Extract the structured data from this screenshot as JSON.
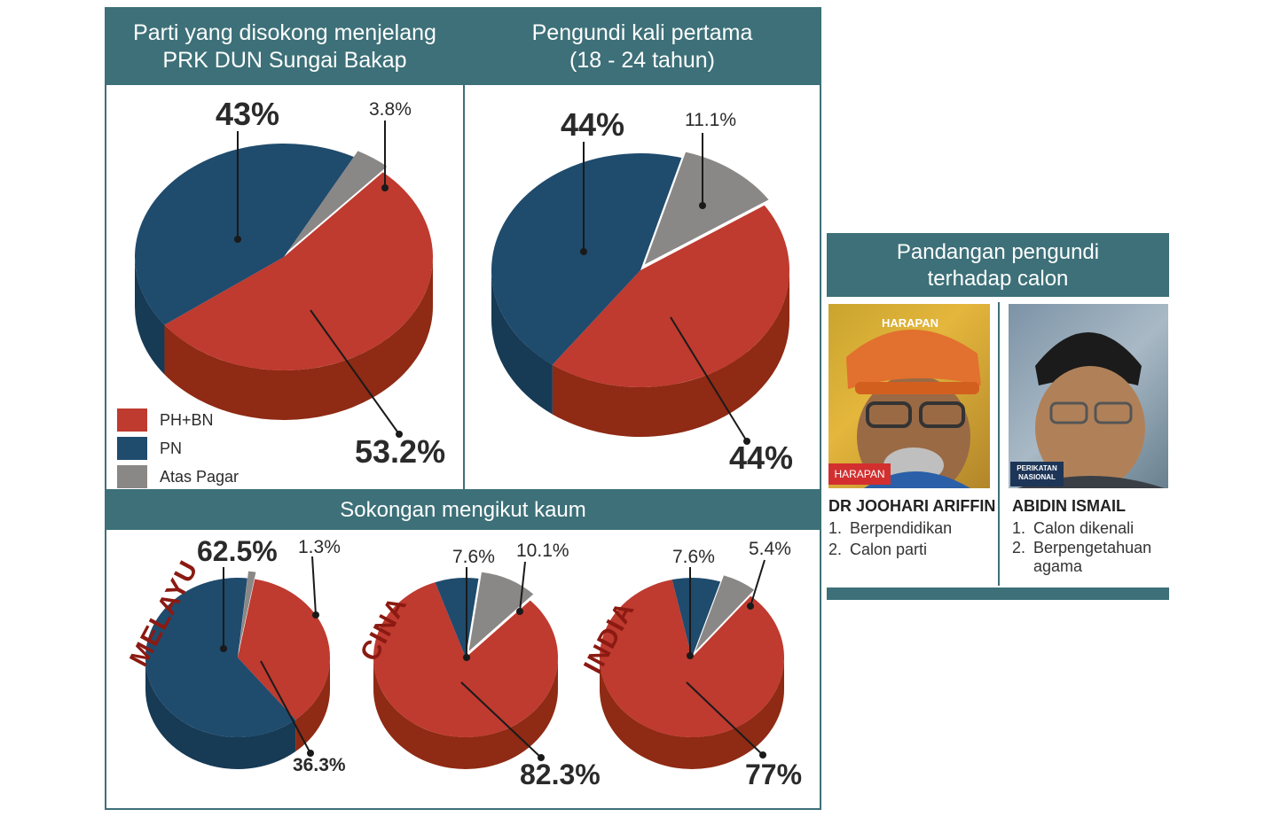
{
  "colors": {
    "teal": "#3d7078",
    "red": "#bf3a2f",
    "red_side": "#8f2a14",
    "navy": "#1f4b6d",
    "navy_side": "#173a55",
    "gray": "#8a8886",
    "gray_side": "#6a6866"
  },
  "panel1": {
    "title": "Parti yang disokong menjelang\nPRK DUN Sungai Bakap",
    "labels": {
      "pn": "43%",
      "atas_pagar": "3.8%",
      "phbn": "53.2%"
    },
    "legend": [
      {
        "label": "PH+BN",
        "color": "#bf3a2f"
      },
      {
        "label": "PN",
        "color": "#1f4b6d"
      },
      {
        "label": "Atas Pagar",
        "color": "#8a8886"
      }
    ]
  },
  "panel2": {
    "title": "Pengundi kali pertama\n(18 - 24 tahun)",
    "labels": {
      "pn": "44%",
      "atas_pagar": "11.1%",
      "phbn": "44%"
    }
  },
  "panel3": {
    "title": "Sokongan mengikut kaum",
    "groups": [
      {
        "name": "MELAYU",
        "pn": "62.5%",
        "atas_pagar": "1.3%",
        "phbn": "36.3%"
      },
      {
        "name": "CINA",
        "pn": "7.6%",
        "atas_pagar": "10.1%",
        "phbn": "82.3%"
      },
      {
        "name": "INDIA",
        "pn": "7.6%",
        "atas_pagar": "5.4%",
        "phbn": "77%"
      }
    ]
  },
  "candidates": {
    "title": "Pandangan pengundi\nterhadap calon",
    "left": {
      "name": "DR JOOHARI ARIFFIN",
      "badge": "HARAPAN",
      "cap_text": "HARAPAN",
      "points": [
        "Berpendidikan",
        "Calon parti"
      ]
    },
    "right": {
      "name": "ABIDIN ISMAIL",
      "badge_line1": "PERIKATAN",
      "badge_line2": "NASIONAL",
      "points": [
        "Calon dikenali",
        "Berpengetahuan agama"
      ]
    }
  },
  "chart_data": [
    {
      "type": "pie",
      "title": "Parti yang disokong menjelang PRK DUN Sungai Bakap",
      "categories": [
        "PH+BN",
        "PN",
        "Atas Pagar"
      ],
      "values": [
        53.2,
        43,
        3.8
      ],
      "legend": "bottom-left"
    },
    {
      "type": "pie",
      "title": "Pengundi kali pertama (18 - 24 tahun)",
      "categories": [
        "PH+BN",
        "PN",
        "Atas Pagar"
      ],
      "values": [
        44,
        44,
        11.1
      ]
    },
    {
      "type": "pie",
      "title": "Sokongan mengikut kaum - MELAYU",
      "categories": [
        "PH+BN",
        "PN",
        "Atas Pagar"
      ],
      "values": [
        36.3,
        62.5,
        1.3
      ]
    },
    {
      "type": "pie",
      "title": "Sokongan mengikut kaum - CINA",
      "categories": [
        "PH+BN",
        "PN",
        "Atas Pagar"
      ],
      "values": [
        82.3,
        7.6,
        10.1
      ]
    },
    {
      "type": "pie",
      "title": "Sokongan mengikut kaum - INDIA",
      "categories": [
        "PH+BN",
        "PN",
        "Atas Pagar"
      ],
      "values": [
        77,
        7.6,
        5.4
      ]
    }
  ]
}
